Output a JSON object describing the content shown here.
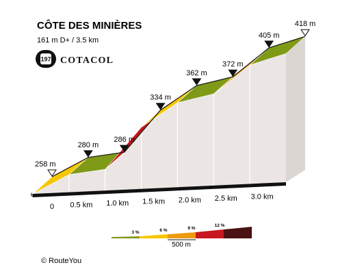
{
  "header": {
    "title": "CÔTE DES MINIÈRES",
    "subtitle": "161 m D+ / 3.5 km",
    "badge_number": "197",
    "brand": "COTACOL"
  },
  "legend": {
    "grades": [
      {
        "label": "3 %",
        "color": "#7f9a16"
      },
      {
        "label": "6 %",
        "color": "#f6c700"
      },
      {
        "label": "9 %",
        "color": "#ee9a0d"
      },
      {
        "label": "12 %",
        "color": "#c8171e"
      },
      {
        "label": "",
        "color": "#4a1212"
      }
    ],
    "scale_label": "500 m"
  },
  "footer": {
    "credit": "© RouteYou"
  },
  "chart_data": {
    "type": "area",
    "title": "CÔTE DES MINIÈRES",
    "x_unit": "km",
    "y_unit": "m",
    "x": [
      0,
      0.5,
      1.0,
      1.5,
      2.0,
      2.5,
      3.0,
      3.5
    ],
    "elevation": [
      258,
      280,
      286,
      334,
      362,
      372,
      405,
      418
    ],
    "elevation_labels": [
      "258 m",
      "280 m",
      "286 m",
      "334 m",
      "362 m",
      "372 m",
      "405 m",
      "418 m"
    ],
    "segment_colors": [
      "#f6c700",
      "#7f9a16",
      "#c8171e",
      "#f6c700",
      "#7f9a16",
      "#ee9a0d",
      "#7f9a16"
    ],
    "x_tick_labels": [
      "0",
      "0.5 km",
      "1.0 km",
      "1.5 km",
      "2.0 km",
      "2.5 km",
      "3.0 km"
    ],
    "total_gain": "161 m D+",
    "distance": "3.5 km"
  }
}
